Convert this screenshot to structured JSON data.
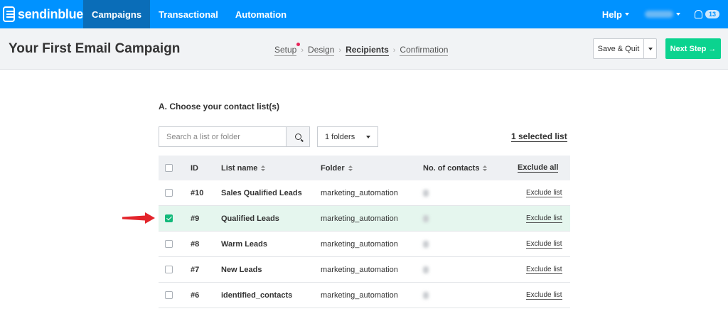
{
  "nav": {
    "brand": "sendinblue",
    "items": [
      "Campaigns",
      "Transactional",
      "Automation"
    ],
    "help_label": "Help",
    "notification_count": "13"
  },
  "header": {
    "title": "Your First Email Campaign",
    "steps": [
      "Setup",
      "Design",
      "Recipients",
      "Confirmation"
    ],
    "current_step": "Recipients",
    "save_label": "Save & Quit",
    "next_label": "Next Step →"
  },
  "main": {
    "section_title": "A. Choose your contact list(s)",
    "search_placeholder": "Search a list or folder",
    "folder_filter": "1 folders",
    "selected_summary": "1 selected list"
  },
  "table": {
    "headers": {
      "id": "ID",
      "name": "List name",
      "folder": "Folder",
      "contacts": "No. of contacts",
      "action": "Exclude all"
    },
    "rows": [
      {
        "id": "#10",
        "name": "Sales Qualified Leads",
        "folder": "marketing_automation",
        "action": "Exclude list",
        "checked": false
      },
      {
        "id": "#9",
        "name": "Qualified Leads",
        "folder": "marketing_automation",
        "action": "Exclude list",
        "checked": true
      },
      {
        "id": "#8",
        "name": "Warm Leads",
        "folder": "marketing_automation",
        "action": "Exclude list",
        "checked": false
      },
      {
        "id": "#7",
        "name": "New Leads",
        "folder": "marketing_automation",
        "action": "Exclude list",
        "checked": false
      },
      {
        "id": "#6",
        "name": "identified_contacts",
        "folder": "marketing_automation",
        "action": "Exclude list",
        "checked": false
      }
    ]
  },
  "colors": {
    "nav_bg": "#0092ff",
    "nav_active": "#0a6db8",
    "primary_button": "#0bd38f",
    "selected_row": "#e5f6ee",
    "annotation_arrow": "#e3242b"
  }
}
